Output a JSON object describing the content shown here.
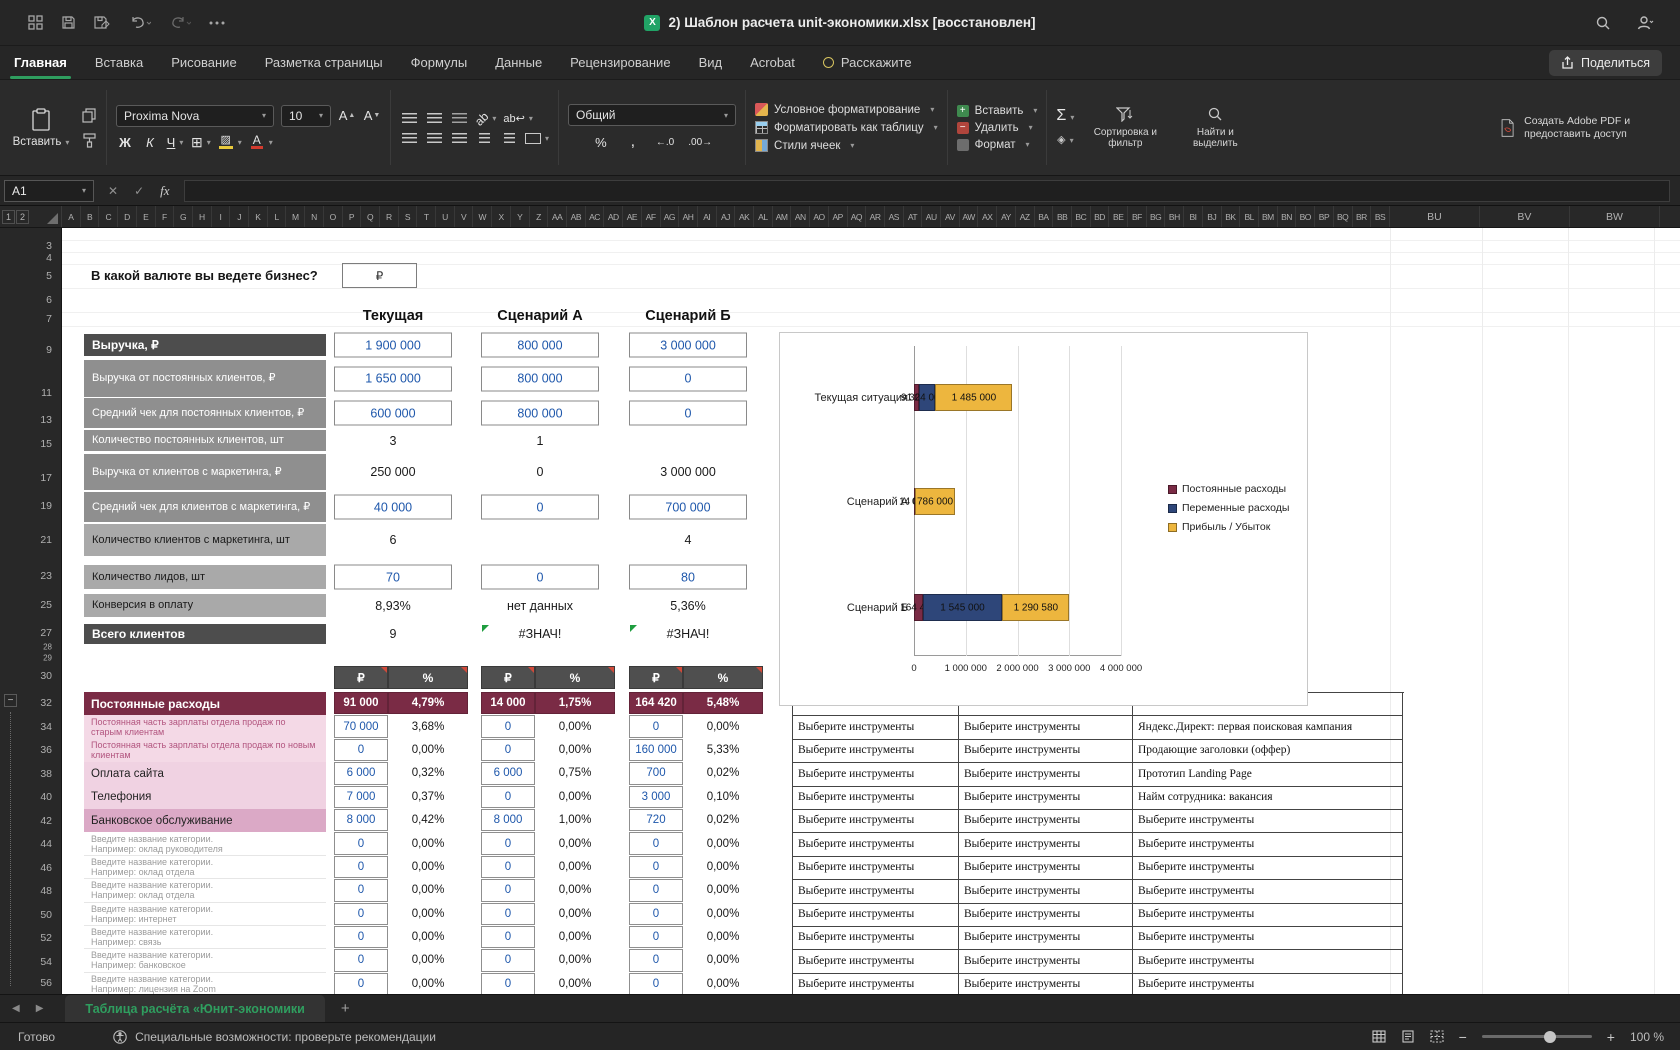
{
  "titlebar": {
    "title": "2) Шаблон расчета unit-экономики.xlsx [восстановлен]"
  },
  "tabs": [
    {
      "label": "Главная",
      "cls": "active"
    },
    {
      "label": "Вставка"
    },
    {
      "label": "Рисование"
    },
    {
      "label": "Разметка страницы"
    },
    {
      "label": "Формулы"
    },
    {
      "label": "Данные"
    },
    {
      "label": "Рецензирование"
    },
    {
      "label": "Вид"
    },
    {
      "label": "Acrobat"
    },
    {
      "label": "Расскажите",
      "cls": "ask"
    }
  ],
  "share_button": "Поделиться",
  "ribbon": {
    "paste": "Вставить",
    "font_name": "Proxima Nova",
    "font_size": "10",
    "bold": "Ж",
    "italic": "К",
    "underline": "Ч",
    "number_format": "Общий",
    "percent": "%",
    "comma": ",",
    "dec_inc": "←.0",
    "dec_dec": ".00→",
    "cond_format": "Условное форматирование",
    "format_table": "Форматировать как таблицу",
    "cell_styles": "Стили ячеек",
    "insert_cells": "Вставить",
    "delete_cells": "Удалить",
    "format_cells": "Формат",
    "sigma": "Σ",
    "eraser": "◈",
    "sort_filter": "Сортировка и фильтр",
    "find_select": "Найти и выделить",
    "adobe": "Создать Adobe PDF и предоставить доступ"
  },
  "formula_bar": {
    "name_box": "A1",
    "cancel": "✕",
    "enter": "✓",
    "fx": "fx"
  },
  "outline_levels": [
    "1",
    "2"
  ],
  "columns": {
    "narrow": [
      "A",
      "B",
      "C",
      "D",
      "E",
      "F",
      "G",
      "H",
      "I",
      "J",
      "K",
      "L",
      "M",
      "N",
      "O",
      "P",
      "Q",
      "R",
      "S",
      "T",
      "U",
      "V",
      "W",
      "X",
      "Y",
      "Z",
      "AA",
      "AB",
      "AC",
      "AD",
      "AE",
      "AF",
      "AG",
      "AH",
      "AI",
      "AJ",
      "AK",
      "AL",
      "AM",
      "AN",
      "AO",
      "AP",
      "AQ",
      "AR",
      "AS",
      "AT",
      "AU",
      "AV",
      "AW",
      "AX",
      "AY",
      "AZ",
      "BA",
      "BB",
      "BC",
      "BD",
      "BE",
      "BF",
      "BG",
      "BH",
      "BI",
      "BJ",
      "BK",
      "BL",
      "BM",
      "BN",
      "BO",
      "BP",
      "BQ",
      "BR",
      "BS"
    ],
    "wide": [
      "BU",
      "BV",
      "BW"
    ]
  },
  "rows": [
    "3",
    "4",
    "5",
    "6",
    "7",
    "9",
    "11",
    "13",
    "15",
    "17",
    "19",
    "21",
    "23",
    "25",
    "27",
    "28",
    "29",
    "30",
    "32",
    "34",
    "36",
    "38",
    "40",
    "42",
    "44",
    "46",
    "48",
    "50",
    "52",
    "54",
    "56"
  ],
  "sheet": {
    "currency_question": "В какой валюте вы ведете бизнес?",
    "currency_value": "₽",
    "scenario_headers": [
      "Текущая",
      "Сценарий А",
      "Сценарий Б"
    ],
    "revenue_rows": [
      {
        "label": "Выручка, ₽",
        "c1": "1 900 000",
        "c2": "800 000",
        "c3": "3 000 000"
      },
      {
        "label": "Выручка от постоянных клиентов, ₽",
        "c1": "1 650 000",
        "c2": "800 000",
        "c3": "0"
      },
      {
        "label": "Средний чек для постоянных клиентов, ₽",
        "c1": "600 000",
        "c2": "800 000",
        "c3": "0"
      },
      {
        "label": "Количество постоянных клиентов, шт",
        "c1": "3",
        "c2": "1",
        "c3": ""
      },
      {
        "label": "Выручка от клиентов с маркетинга, ₽",
        "c1": "250 000",
        "c2": "0",
        "c3": "3 000 000"
      },
      {
        "label": "Средний чек для клиентов с маркетинга, ₽",
        "c1": "40 000",
        "c2": "0",
        "c3": "700 000"
      },
      {
        "label": "Количество клиентов с маркетинга, шт",
        "c1": "6",
        "c2": "",
        "c3": "4"
      },
      {
        "label": "Количество лидов, шт",
        "c1": "70",
        "c2": "0",
        "c3": "80"
      },
      {
        "label": "Конверсия в оплату",
        "c1": "8,93%",
        "c2": "нет данных",
        "c3": "5,36%"
      },
      {
        "label": "Всего клиентов",
        "c1": "9",
        "c2": "#ЗНАЧ!",
        "c3": "#ЗНАЧ!"
      }
    ],
    "money_pct_headers": [
      "₽",
      "%",
      "₽",
      "%",
      "₽",
      "%"
    ],
    "expense_rows": [
      {
        "cls": "sec-hdr",
        "label": "Постоянные расходы",
        "v1": "91 000",
        "p1": "4,79%",
        "v2": "14 000",
        "p2": "1,75%",
        "v3": "164 420",
        "p3": "5,48%"
      },
      {
        "cls": "pink-sm",
        "label": "Постоянная часть зарплаты отдела продаж по старым клиентам",
        "v1": "70 000",
        "p1": "3,68%",
        "v2": "0",
        "p2": "0,00%",
        "v3": "0",
        "p3": "0,00%"
      },
      {
        "cls": "pink-sm",
        "label": "Постоянная часть зарплаты отдела продаж по новым клиентам",
        "v1": "0",
        "p1": "0,00%",
        "v2": "0",
        "p2": "0,00%",
        "v3": "160 000",
        "p3": "5,33%"
      },
      {
        "cls": "pink",
        "label": "Оплата сайта",
        "v1": "6 000",
        "p1": "0,32%",
        "v2": "6 000",
        "p2": "0,75%",
        "v3": "700",
        "p3": "0,02%"
      },
      {
        "cls": "pink",
        "label": "Телефония",
        "v1": "7 000",
        "p1": "0,37%",
        "v2": "0",
        "p2": "0,00%",
        "v3": "3 000",
        "p3": "0,10%"
      },
      {
        "cls": "pink2",
        "label": "Банковское обслуживание",
        "v1": "8 000",
        "p1": "0,42%",
        "v2": "8 000",
        "p2": "1,00%",
        "v3": "720",
        "p3": "0,02%"
      },
      {
        "cls": "ph",
        "label": "Введите название категории.",
        "label2": "Например: оклад руководителя",
        "v1": "0",
        "p1": "0,00%",
        "v2": "0",
        "p2": "0,00%",
        "v3": "0",
        "p3": "0,00%"
      },
      {
        "cls": "ph",
        "label": "Введите название категории.",
        "label2": "Например: оклад отдела",
        "v1": "0",
        "p1": "0,00%",
        "v2": "0",
        "p2": "0,00%",
        "v3": "0",
        "p3": "0,00%"
      },
      {
        "cls": "ph",
        "label": "Введите название категории.",
        "label2": "Например: оклад отдела",
        "v1": "0",
        "p1": "0,00%",
        "v2": "0",
        "p2": "0,00%",
        "v3": "0",
        "p3": "0,00%"
      },
      {
        "cls": "ph",
        "label": "Введите название категории.",
        "label2": "Например: интернет",
        "v1": "0",
        "p1": "0,00%",
        "v2": "0",
        "p2": "0,00%",
        "v3": "0",
        "p3": "0,00%"
      },
      {
        "cls": "ph",
        "label": "Введите название категории.",
        "label2": "Например: связь",
        "v1": "0",
        "p1": "0,00%",
        "v2": "0",
        "p2": "0,00%",
        "v3": "0",
        "p3": "0,00%"
      },
      {
        "cls": "ph",
        "label": "Введите название категории.",
        "label2": "Например: банковское",
        "v1": "0",
        "p1": "0,00%",
        "v2": "0",
        "p2": "0,00%",
        "v3": "0",
        "p3": "0,00%"
      },
      {
        "cls": "ph",
        "label": "Введите название категории.",
        "label2": "Например: лицензия на Zoom",
        "v1": "0",
        "p1": "0,00%",
        "v2": "0",
        "p2": "0,00%",
        "v3": "0",
        "p3": "0,00%"
      }
    ],
    "tools_rows": [
      {
        "c1": "",
        "c2": "",
        "c3": ""
      },
      {
        "c1": "Выберите инструменты",
        "c2": "Выберите инструменты",
        "c3": "Яндекс.Директ: первая поисковая кампания"
      },
      {
        "c1": "Выберите инструменты",
        "c2": "Выберите инструменты",
        "c3": "Продающие заголовки (оффер)"
      },
      {
        "c1": "Выберите инструменты",
        "c2": "Выберите инструменты",
        "c3": "Прототип Landing Page"
      },
      {
        "c1": "Выберите инструменты",
        "c2": "Выберите инструменты",
        "c3": "Найм сотрудника: вакансия"
      },
      {
        "c1": "Выберите инструменты",
        "c2": "Выберите инструменты",
        "c3": "Выберите инструменты"
      },
      {
        "c1": "Выберите инструменты",
        "c2": "Выберите инструменты",
        "c3": "Выберите инструменты"
      },
      {
        "c1": "Выберите инструменты",
        "c2": "Выберите инструменты",
        "c3": "Выберите инструменты"
      },
      {
        "c1": "Выберите инструменты",
        "c2": "Выберите инструменты",
        "c3": "Выберите инструменты"
      },
      {
        "c1": "Выберите инструменты",
        "c2": "Выберите инструменты",
        "c3": "Выберите инструменты"
      },
      {
        "c1": "Выберите инструменты",
        "c2": "Выберите инструменты",
        "c3": "Выберите инструменты"
      },
      {
        "c1": "Выберите инструменты",
        "c2": "Выберите инструменты",
        "c3": "Выберите инструменты"
      },
      {
        "c1": "Выберите инструменты",
        "c2": "Выберите инструменты",
        "c3": "Выберите инструменты"
      }
    ]
  },
  "chart_data": {
    "type": "bar",
    "orientation": "horizontal-stacked",
    "categories": [
      "Текущая ситуация",
      "Сценарий А",
      "Сценарий Б"
    ],
    "series": [
      {
        "name": "Постоянные расходы",
        "color": "#7a2b45",
        "values": [
          91000,
          14000,
          164420
        ],
        "labels": [
          "91 000",
          "14 000",
          "164 420"
        ]
      },
      {
        "name": "Переменные расходы",
        "color": "#2e4679",
        "values": [
          324000,
          0,
          1545000
        ],
        "labels": [
          "324 000",
          "0",
          "1 545 000"
        ]
      },
      {
        "name": "Прибыль / Убыток",
        "color": "#edb63e",
        "values": [
          1485000,
          786000,
          1290580
        ],
        "labels": [
          "1 485 000",
          "786 000",
          "1 290 580"
        ]
      }
    ],
    "x_ticks": [
      "0",
      "1 000 000",
      "2 000 000",
      "3 000 000",
      "4 000 000"
    ],
    "x_max": 4000000,
    "grid": true,
    "legend_position": "right"
  },
  "sheet_tabs": {
    "active": "Таблица расчёта «Юнит-экономики",
    "add": "+"
  },
  "status_bar": {
    "ready": "Готово",
    "accessibility": "Специальные возможности: проверьте рекомендации",
    "zoom": "100 %"
  },
  "colors": {
    "accent_green": "#2f9e5f",
    "section_maroon": "#7a2b45",
    "series_navy": "#2e4679",
    "series_gold": "#edb63e",
    "input_blue": "#1e57ab",
    "row_pink": "#f0d2e2"
  }
}
